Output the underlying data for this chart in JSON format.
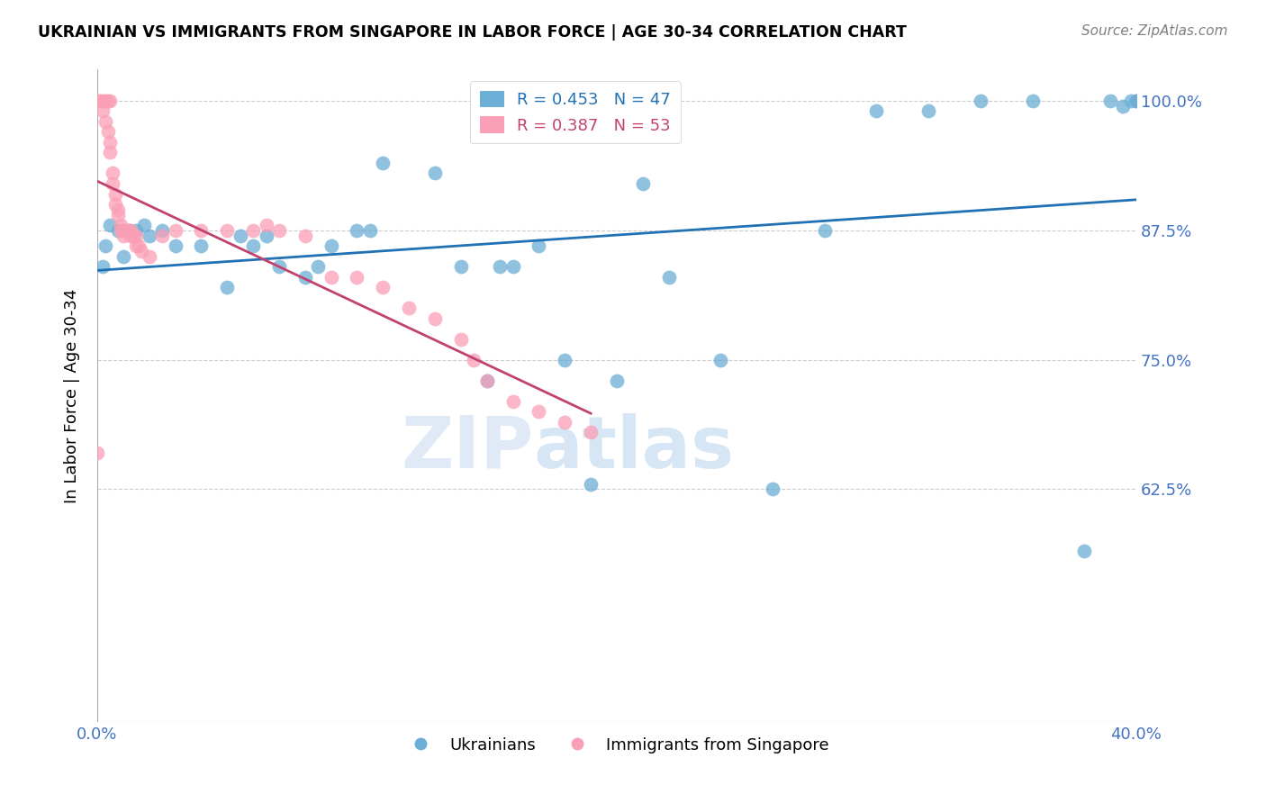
{
  "title": "UKRAINIAN VS IMMIGRANTS FROM SINGAPORE IN LABOR FORCE | AGE 30-34 CORRELATION CHART",
  "source": "Source: ZipAtlas.com",
  "ylabel": "In Labor Force | Age 30-34",
  "xmin": 0.0,
  "xmax": 0.4,
  "ymin": 0.4,
  "ymax": 1.03,
  "yticks": [
    1.0,
    0.875,
    0.75,
    0.625
  ],
  "ytick_labels": [
    "100.0%",
    "87.5%",
    "75.0%",
    "62.5%"
  ],
  "xticks": [
    0.0,
    0.05,
    0.1,
    0.15,
    0.2,
    0.25,
    0.3,
    0.35,
    0.4
  ],
  "xtick_labels": [
    "0.0%",
    "",
    "",
    "",
    "",
    "",
    "",
    "",
    "40.0%"
  ],
  "legend_ukrainians": "Ukrainians",
  "legend_singapore": "Immigrants from Singapore",
  "R_ukrainians": 0.453,
  "N_ukrainians": 47,
  "R_singapore": 0.387,
  "N_singapore": 53,
  "blue_color": "#6baed6",
  "pink_color": "#fa9fb5",
  "blue_line_color": "#2171b5",
  "pink_line_color": "#c2426e",
  "axis_color": "#4472c4",
  "watermark_zip": "ZIP",
  "watermark_atlas": "atlas",
  "blue_scatter_x": [
    0.002,
    0.003,
    0.005,
    0.008,
    0.01,
    0.012,
    0.015,
    0.018,
    0.02,
    0.025,
    0.03,
    0.04,
    0.05,
    0.055,
    0.06,
    0.065,
    0.07,
    0.08,
    0.085,
    0.09,
    0.1,
    0.105,
    0.11,
    0.13,
    0.14,
    0.15,
    0.155,
    0.16,
    0.17,
    0.18,
    0.19,
    0.2,
    0.21,
    0.22,
    0.24,
    0.26,
    0.28,
    0.3,
    0.32,
    0.34,
    0.36,
    0.38,
    0.39,
    0.395,
    0.398,
    0.4,
    0.4
  ],
  "blue_scatter_y": [
    0.84,
    0.86,
    0.88,
    0.875,
    0.85,
    0.875,
    0.875,
    0.88,
    0.87,
    0.875,
    0.86,
    0.86,
    0.82,
    0.87,
    0.86,
    0.87,
    0.84,
    0.83,
    0.84,
    0.86,
    0.875,
    0.875,
    0.94,
    0.93,
    0.84,
    0.73,
    0.84,
    0.84,
    0.86,
    0.75,
    0.63,
    0.73,
    0.92,
    0.83,
    0.75,
    0.625,
    0.875,
    0.99,
    0.99,
    1.0,
    1.0,
    0.565,
    1.0,
    0.995,
    1.0,
    1.0,
    1.0
  ],
  "pink_scatter_x": [
    0.0,
    0.001,
    0.001,
    0.002,
    0.002,
    0.003,
    0.003,
    0.004,
    0.004,
    0.005,
    0.005,
    0.005,
    0.006,
    0.006,
    0.007,
    0.007,
    0.008,
    0.008,
    0.009,
    0.009,
    0.01,
    0.01,
    0.01,
    0.011,
    0.012,
    0.013,
    0.013,
    0.014,
    0.015,
    0.015,
    0.016,
    0.017,
    0.02,
    0.025,
    0.03,
    0.04,
    0.05,
    0.06,
    0.065,
    0.07,
    0.08,
    0.09,
    0.1,
    0.11,
    0.12,
    0.13,
    0.14,
    0.145,
    0.15,
    0.16,
    0.17,
    0.18,
    0.19
  ],
  "pink_scatter_y": [
    0.66,
    1.0,
    1.0,
    1.0,
    0.99,
    1.0,
    0.98,
    1.0,
    0.97,
    1.0,
    0.96,
    0.95,
    0.93,
    0.92,
    0.91,
    0.9,
    0.895,
    0.89,
    0.88,
    0.875,
    0.875,
    0.87,
    0.875,
    0.875,
    0.875,
    0.875,
    0.87,
    0.87,
    0.87,
    0.86,
    0.86,
    0.855,
    0.85,
    0.87,
    0.875,
    0.875,
    0.875,
    0.875,
    0.88,
    0.875,
    0.87,
    0.83,
    0.83,
    0.82,
    0.8,
    0.79,
    0.77,
    0.75,
    0.73,
    0.71,
    0.7,
    0.69,
    0.68
  ]
}
